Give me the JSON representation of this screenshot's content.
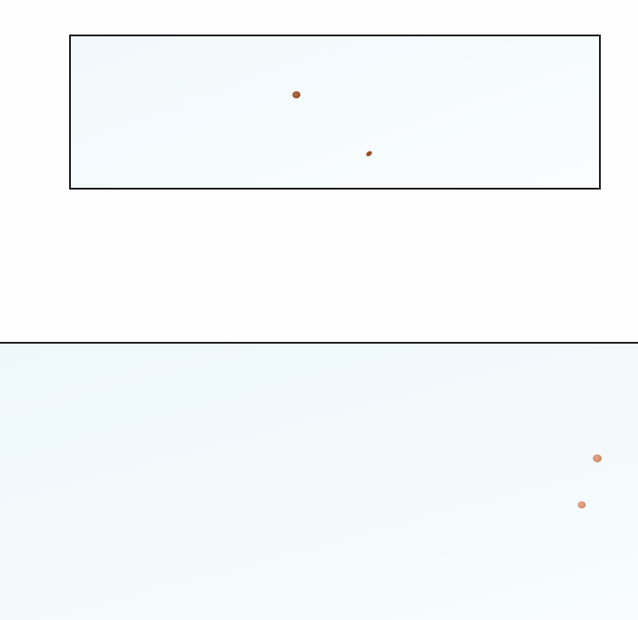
{
  "page": {
    "background": "#fefefe"
  },
  "panels": {
    "small": {
      "border_color": "#1a1a1a",
      "fill_color": "#f4fafd"
    },
    "large": {
      "fill_color": "#f2f9fb"
    },
    "divider_color": "#1e1e1e"
  },
  "marks": {
    "small_panel": [
      {
        "icon": "speck-dark-brown",
        "color": "#8a4a26"
      },
      {
        "icon": "speck-dark-brown",
        "color": "#9a4a22"
      }
    ],
    "large_panel": [
      {
        "icon": "speck-light-salmon",
        "color": "#cf8664"
      },
      {
        "icon": "speck-light-salmon",
        "color": "#d38b6a"
      }
    ]
  }
}
